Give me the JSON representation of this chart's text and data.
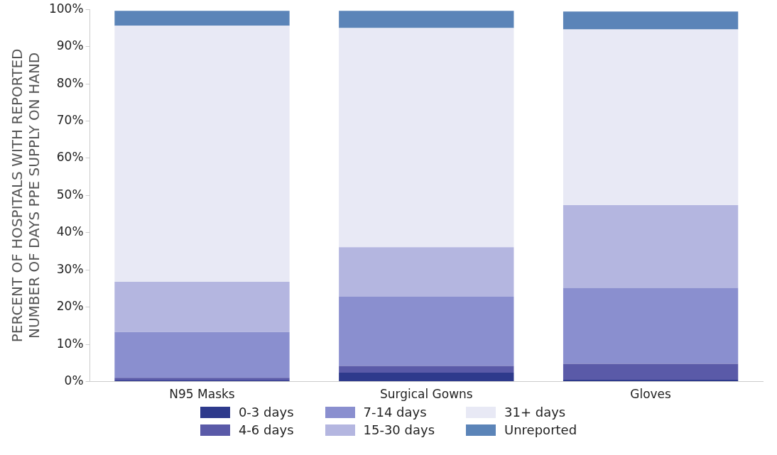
{
  "chart_data": {
    "type": "bar",
    "stacked": true,
    "ylabel": "PERCENT OF HOSPITALS WITH REPORTED\nNUMBER OF DAYS PPE SUPPLY ON HAND",
    "categories": [
      "N95 Masks",
      "Surgical Gowns",
      "Gloves"
    ],
    "series": [
      {
        "name": "0-3 days",
        "color": "#2e3a8c",
        "values": [
          0.3,
          2.4,
          0.5
        ]
      },
      {
        "name": "4-6 days",
        "color": "#5a5aa8",
        "values": [
          0.7,
          1.8,
          4.3
        ]
      },
      {
        "name": "7-14 days",
        "color": "#8a8fcf",
        "values": [
          12.3,
          18.6,
          20.4
        ]
      },
      {
        "name": "15-30 days",
        "color": "#b4b6e0",
        "values": [
          13.5,
          13.3,
          22.2
        ]
      },
      {
        "name": "31+ days",
        "color": "#e8e9f5",
        "values": [
          68.8,
          58.9,
          47.2
        ]
      },
      {
        "name": "Unreported",
        "color": "#5b84b8",
        "values": [
          4.0,
          4.6,
          4.8
        ]
      }
    ],
    "ylim": [
      0,
      100
    ],
    "yticks": [
      {
        "value": 0,
        "label": "0%"
      },
      {
        "value": 10,
        "label": "10%"
      },
      {
        "value": 20,
        "label": "20%"
      },
      {
        "value": 30,
        "label": "30%"
      },
      {
        "value": 40,
        "label": "40%"
      },
      {
        "value": 50,
        "label": "50%"
      },
      {
        "value": 60,
        "label": "60%"
      },
      {
        "value": 70,
        "label": "70%"
      },
      {
        "value": 80,
        "label": "80%"
      },
      {
        "value": 90,
        "label": "90%"
      },
      {
        "value": 100,
        "label": "100%"
      }
    ],
    "grid": false,
    "legend": "bottom"
  }
}
